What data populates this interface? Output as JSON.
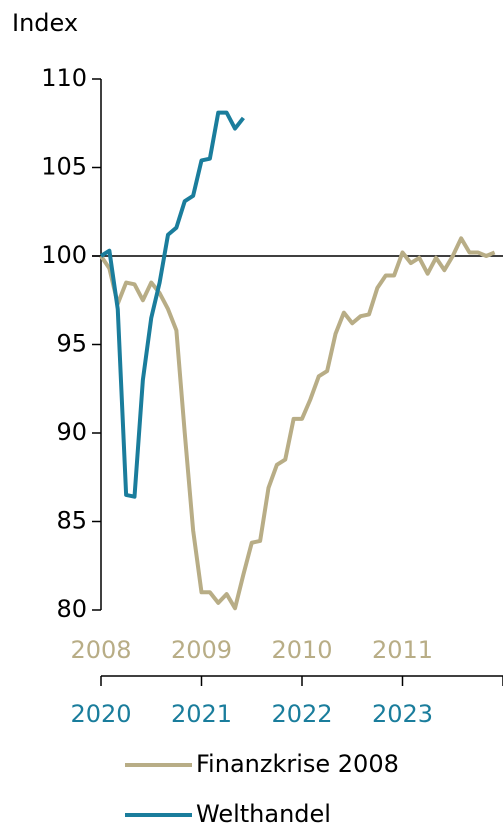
{
  "chart_data": {
    "type": "line",
    "y_label": "Index",
    "x": [
      0,
      1,
      2,
      3,
      4,
      5,
      6,
      7,
      8,
      9,
      10,
      11,
      12,
      13,
      14,
      15,
      16,
      17,
      18,
      19,
      20,
      21,
      22,
      23,
      24,
      25,
      26,
      27,
      28,
      29,
      30,
      31,
      32,
      33,
      34,
      35,
      36,
      37,
      38,
      39,
      40,
      41,
      42,
      43,
      44,
      45,
      46,
      47
    ],
    "xlim": [
      0,
      48
    ],
    "xticks": [
      {
        "value": 0,
        "label": "2008"
      },
      {
        "value": 12,
        "label": "2009"
      },
      {
        "value": 24,
        "label": "2010"
      },
      {
        "value": 36,
        "label": "2011"
      },
      48
    ],
    "xticks_secondary": [
      {
        "value": 0,
        "label": "2020"
      },
      {
        "value": 12,
        "label": "2021"
      },
      {
        "value": 24,
        "label": "2022"
      },
      {
        "value": 36,
        "label": "2023"
      }
    ],
    "ylim": [
      80,
      110
    ],
    "yticks": [
      80,
      85,
      90,
      95,
      100,
      105,
      110
    ],
    "reference_line": 100,
    "legend": "bottom",
    "series": [
      {
        "name": "Finanzkrise 2008",
        "color": "#b8ad86",
        "values": [
          100,
          99.3,
          97.3,
          98.5,
          98.4,
          97.5,
          98.5,
          97.9,
          97,
          95.8,
          90,
          84.5,
          81,
          81,
          80.4,
          80.9,
          80.1,
          82,
          83.8,
          83.9,
          86.9,
          88.2,
          88.5,
          90.8,
          90.8,
          91.9,
          93.2,
          93.5,
          95.6,
          96.8,
          96.2,
          96.6,
          96.7,
          98.2,
          98.9,
          98.9,
          100.2,
          99.6,
          99.9,
          99,
          99.9,
          99.2,
          100,
          101,
          100.2,
          100.2,
          100,
          100.2
        ]
      },
      {
        "name": "Welthandel",
        "color": "#1a7d9c",
        "values": [
          100,
          100.3,
          97,
          86.5,
          86.4,
          93,
          96.5,
          98.5,
          101.2,
          101.6,
          103.1,
          103.4,
          105.4,
          105.5,
          108.1,
          108.1,
          107.2,
          107.8,
          null,
          null,
          null,
          null,
          null,
          null,
          null,
          null,
          null,
          null,
          null,
          null,
          null,
          null,
          null,
          null,
          null,
          null,
          null,
          null,
          null,
          null,
          null,
          null,
          null,
          null,
          null,
          null,
          null,
          null
        ]
      }
    ]
  }
}
